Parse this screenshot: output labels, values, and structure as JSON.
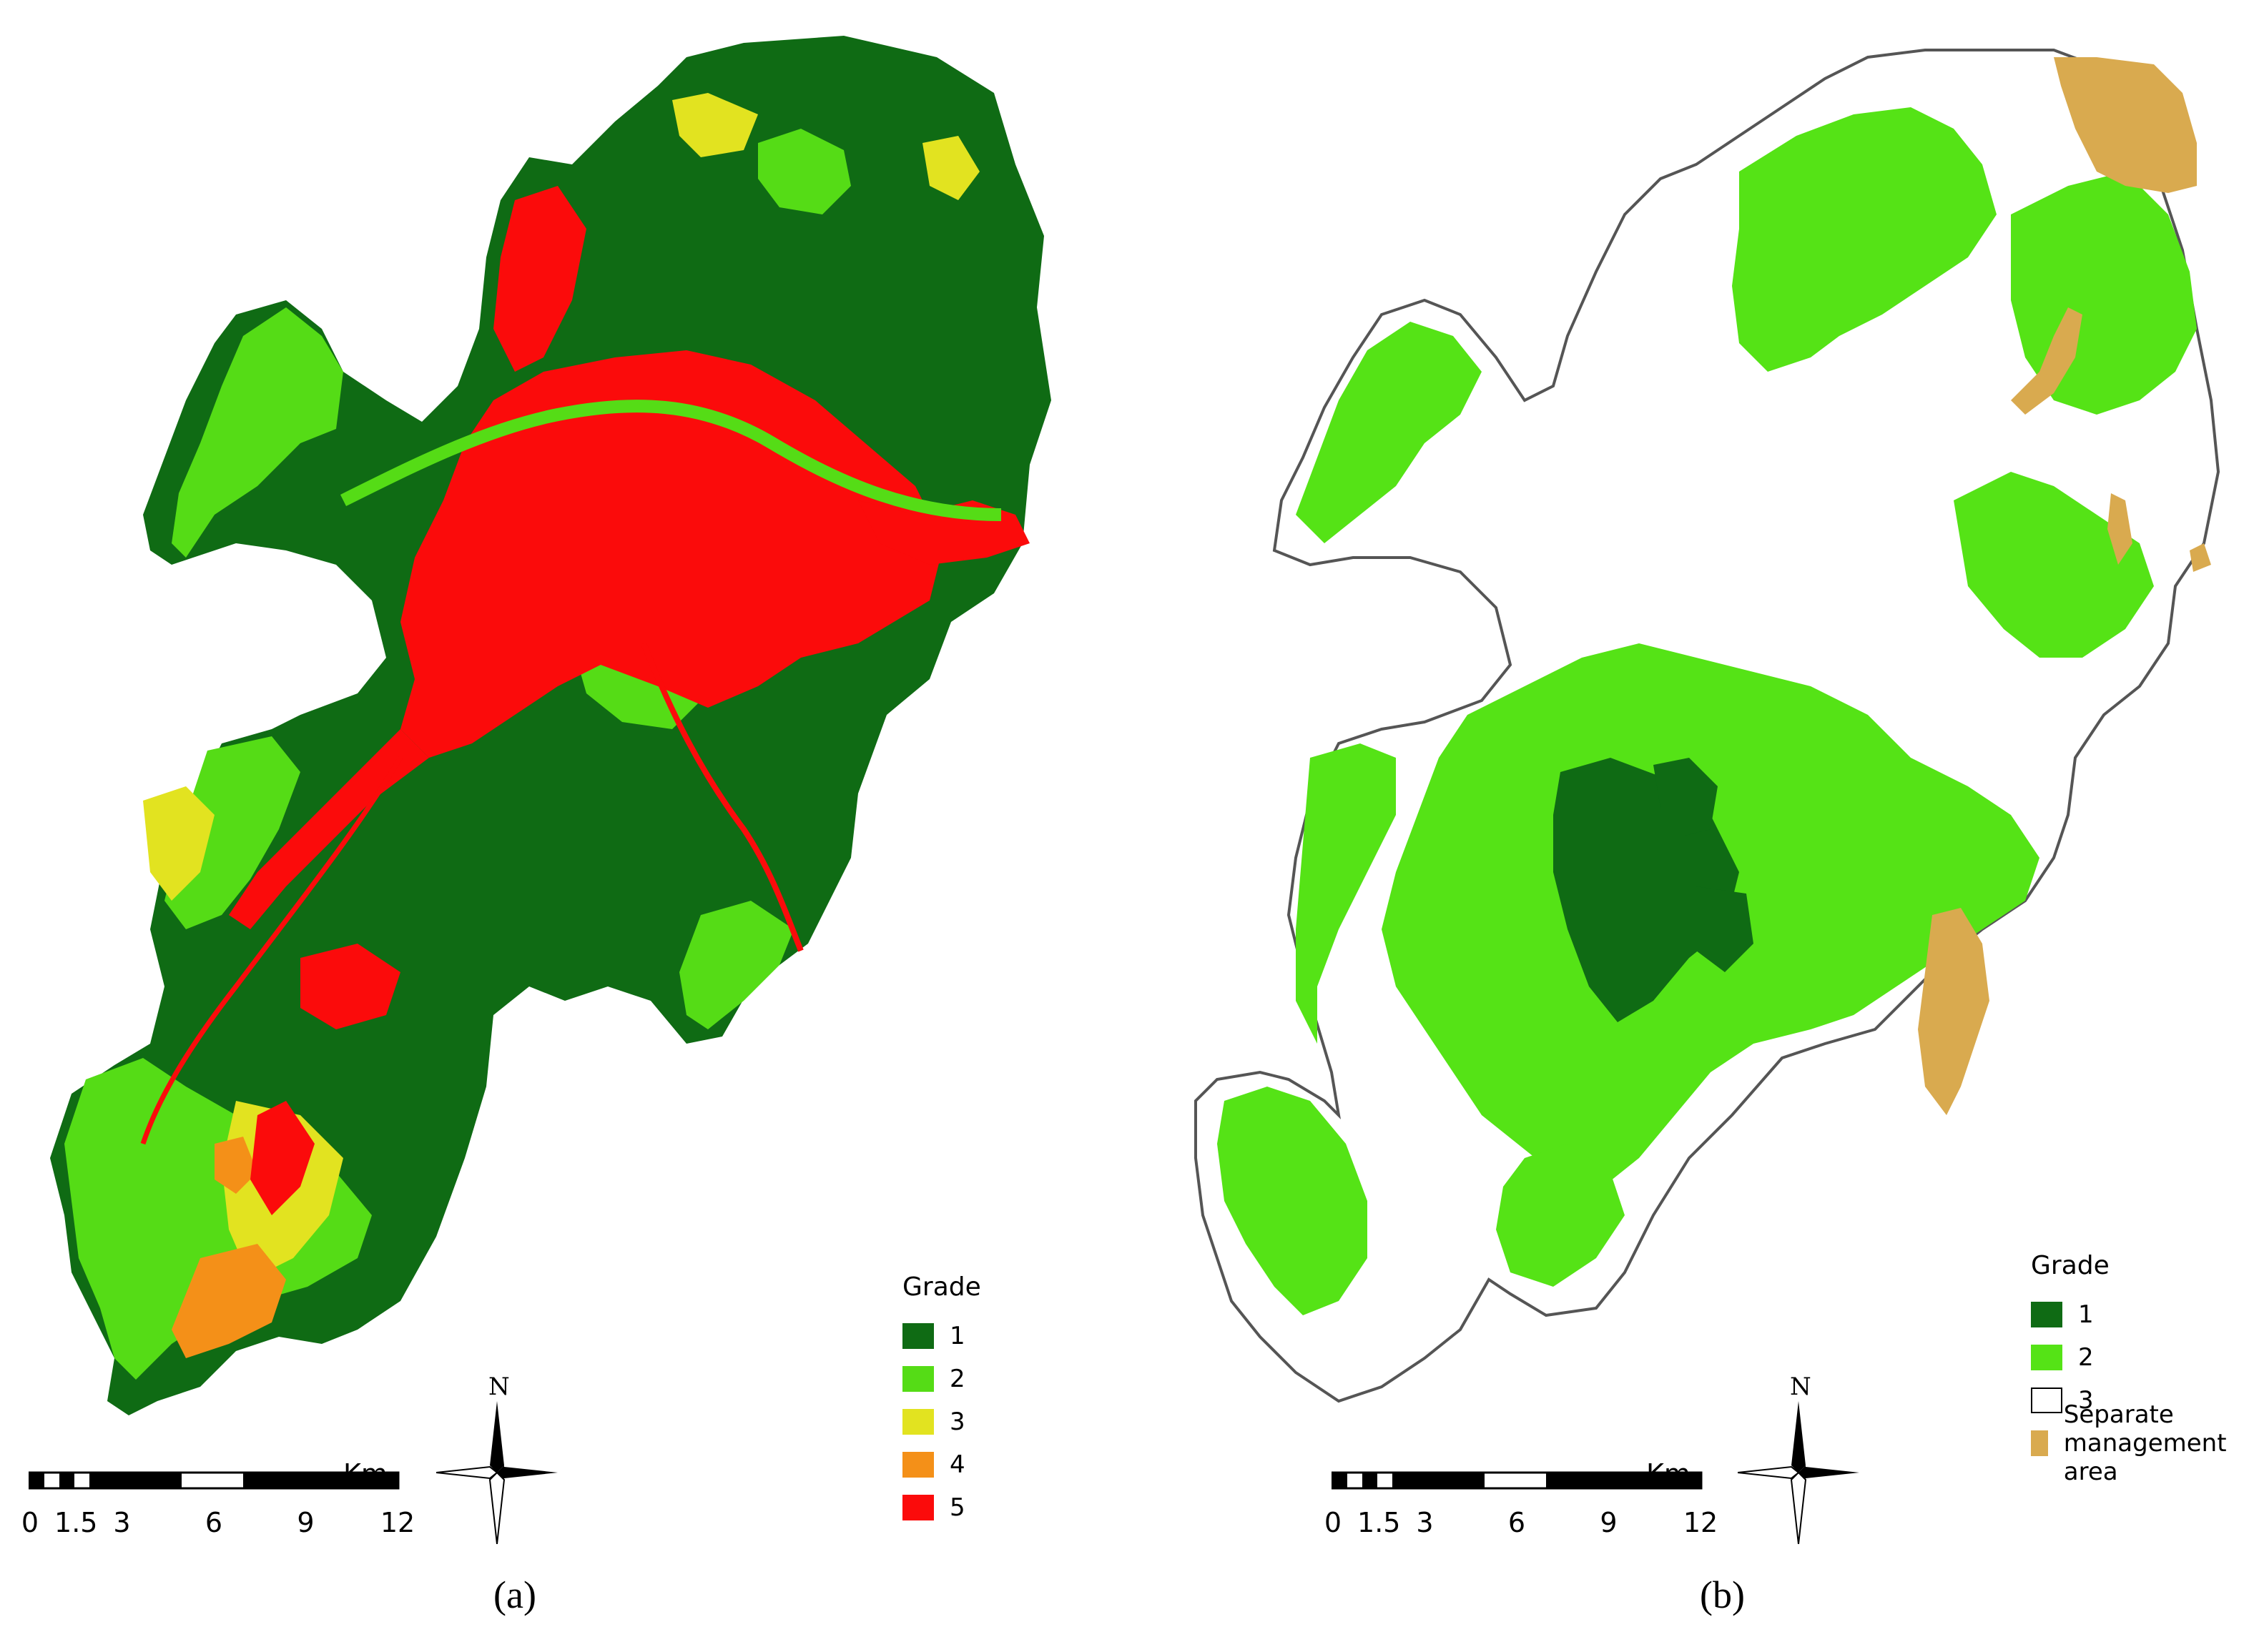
{
  "figure_a": {
    "caption_prefix": "(",
    "caption_letter": "a",
    "caption_suffix": ")",
    "legend": {
      "title": "Grade",
      "items": [
        {
          "label": "1",
          "color": "#0f6b14"
        },
        {
          "label": "2",
          "color": "#55dc16"
        },
        {
          "label": "3",
          "color": "#e2e320"
        },
        {
          "label": "4",
          "color": "#f49018"
        },
        {
          "label": "5",
          "color": "#fb0b0b"
        }
      ]
    },
    "scale": {
      "ticks": [
        "0",
        "1.5",
        "3",
        "6",
        "9",
        "12"
      ],
      "unit": "Km"
    },
    "north_label": "N"
  },
  "figure_b": {
    "caption_prefix": "(",
    "caption_letter": "b",
    "caption_suffix": ")",
    "legend": {
      "title": "Grade",
      "items": [
        {
          "label": "1",
          "color": "#0f6b14"
        },
        {
          "label": "2",
          "color": "#55e316"
        },
        {
          "label": "3",
          "color": "#ffffff"
        },
        {
          "label": "Separate management area",
          "color": "#d9aa4f"
        }
      ]
    },
    "scale": {
      "ticks": [
        "0",
        "1.5",
        "3",
        "6",
        "9",
        "12"
      ],
      "unit": "Km"
    },
    "north_label": "N"
  },
  "map_colors": {
    "grade1": "#0f6b14",
    "grade2": "#55dc16",
    "grade3": "#e2e320",
    "grade4": "#f49018",
    "grade5": "#fb0b0b",
    "separate_area": "#d9aa4f",
    "outline": "#555555"
  }
}
